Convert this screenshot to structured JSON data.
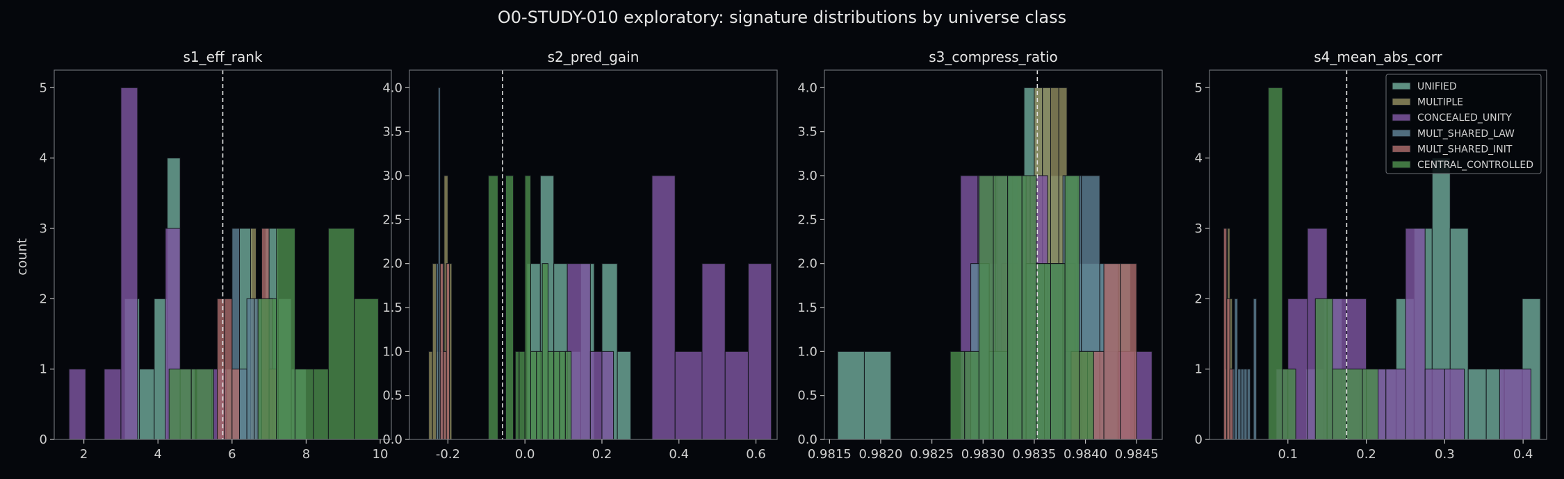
{
  "suptitle": "O0-STUDY-010 exploratory: signature distributions by universe class",
  "ylabel": "count",
  "legend": [
    "UNIFIED",
    "MULTIPLE",
    "CONCEALED_UNITY",
    "MULT_SHARED_LAW",
    "MULT_SHARED_INIT",
    "CENTRAL_CONTROLLED"
  ],
  "colors": {
    "UNIFIED": "#6fa898",
    "MULTIPLE": "#8f8a5e",
    "CONCEALED_UNITY": "#7e56a0",
    "MULT_SHARED_LAW": "#5e7f93",
    "MULT_SHARED_INIT": "#a86a6a",
    "CENTRAL_CONTROLLED": "#4c8a4c"
  },
  "chart_data": [
    {
      "type": "bar",
      "title": "s1_eff_rank",
      "xlim": [
        1.2,
        10.3
      ],
      "ylim": [
        0,
        5.25
      ],
      "xticks": [
        2,
        4,
        6,
        8,
        10
      ],
      "yticks": [
        0,
        1,
        2,
        3,
        4,
        5
      ],
      "mean_line": 5.75,
      "series": [
        {
          "name": "UNIFIED",
          "bars": [
            [
              3.1,
              3.5,
              2
            ],
            [
              3.5,
              3.9,
              1
            ],
            [
              3.9,
              4.25,
              2
            ],
            [
              4.25,
              4.6,
              4
            ],
            [
              4.6,
              5.0,
              1
            ],
            [
              5.8,
              6.2,
              1
            ],
            [
              6.2,
              6.55,
              3
            ],
            [
              6.55,
              6.9,
              2
            ],
            [
              6.9,
              7.25,
              3
            ],
            [
              7.25,
              7.6,
              2
            ],
            [
              7.6,
              8.0,
              1
            ]
          ]
        },
        {
          "name": "MULTIPLE",
          "bars": [
            [
              6.5,
              6.65,
              3
            ],
            [
              6.65,
              6.8,
              2
            ],
            [
              6.8,
              6.95,
              1
            ],
            [
              6.95,
              7.1,
              2
            ]
          ]
        },
        {
          "name": "CONCEALED_UNITY",
          "bars": [
            [
              1.6,
              2.05,
              1
            ],
            [
              2.55,
              3.0,
              1
            ],
            [
              3.0,
              3.45,
              5
            ],
            [
              4.2,
              4.6,
              3
            ],
            [
              4.6,
              5.0,
              1
            ],
            [
              5.05,
              5.45,
              1
            ],
            [
              5.45,
              5.85,
              1
            ],
            [
              6.7,
              7.1,
              2
            ]
          ]
        },
        {
          "name": "MULT_SHARED_LAW",
          "bars": [
            [
              6.0,
              6.2,
              3
            ],
            [
              6.2,
              6.4,
              1
            ],
            [
              6.4,
              6.6,
              2
            ],
            [
              6.6,
              6.8,
              2
            ]
          ]
        },
        {
          "name": "MULT_SHARED_INIT",
          "bars": [
            [
              5.6,
              5.8,
              2
            ],
            [
              5.8,
              6.0,
              2
            ],
            [
              6.0,
              6.2,
              1
            ],
            [
              6.8,
              7.0,
              3
            ],
            [
              7.0,
              7.2,
              1
            ]
          ]
        },
        {
          "name": "CENTRAL_CONTROLLED",
          "bars": [
            [
              4.3,
              4.9,
              1
            ],
            [
              4.9,
              5.5,
              1
            ],
            [
              6.7,
              7.2,
              2
            ],
            [
              7.2,
              7.7,
              3
            ],
            [
              7.7,
              8.2,
              1
            ],
            [
              8.2,
              8.6,
              1
            ],
            [
              8.6,
              9.3,
              3
            ],
            [
              9.3,
              9.95,
              2
            ]
          ]
        }
      ]
    },
    {
      "type": "bar",
      "title": "s2_pred_gain",
      "xlim": [
        -0.3,
        0.655
      ],
      "ylim": [
        0,
        4.2
      ],
      "xticks": [
        -0.2,
        0.0,
        0.2,
        0.4,
        0.6
      ],
      "yticks": [
        0.0,
        0.5,
        1.0,
        1.5,
        2.0,
        2.5,
        3.0,
        3.5,
        4.0
      ],
      "mean_line": -0.058,
      "series": [
        {
          "name": "UNIFIED",
          "bars": [
            [
              0.005,
              0.04,
              2
            ],
            [
              0.04,
              0.075,
              3
            ],
            [
              0.075,
              0.11,
              2
            ],
            [
              0.11,
              0.145,
              1
            ],
            [
              0.145,
              0.18,
              2
            ],
            [
              0.2,
              0.24,
              2
            ],
            [
              0.24,
              0.275,
              1
            ]
          ]
        },
        {
          "name": "MULTIPLE",
          "bars": [
            [
              -0.25,
              -0.24,
              1
            ],
            [
              -0.24,
              -0.23,
              2
            ],
            [
              -0.23,
              -0.22,
              1
            ],
            [
              -0.22,
              -0.21,
              2
            ],
            [
              -0.21,
              -0.2,
              3
            ],
            [
              -0.2,
              -0.19,
              2
            ]
          ]
        },
        {
          "name": "CONCEALED_UNITY",
          "bars": [
            [
              0.11,
              0.17,
              2
            ],
            [
              0.17,
              0.2,
              1
            ],
            [
              0.2,
              0.23,
              1
            ],
            [
              0.33,
              0.39,
              3
            ],
            [
              0.39,
              0.46,
              1
            ],
            [
              0.46,
              0.52,
              2
            ],
            [
              0.52,
              0.58,
              1
            ],
            [
              0.58,
              0.64,
              2
            ]
          ]
        },
        {
          "name": "MULT_SHARED_LAW",
          "bars": [
            [
              -0.23,
              -0.225,
              2
            ],
            [
              -0.225,
              -0.22,
              4
            ],
            [
              -0.22,
              -0.215,
              1
            ],
            [
              -0.215,
              -0.21,
              2
            ]
          ]
        },
        {
          "name": "MULT_SHARED_INIT",
          "bars": [
            [
              -0.22,
              -0.212,
              2
            ],
            [
              -0.212,
              -0.204,
              1
            ],
            [
              -0.204,
              -0.196,
              2
            ]
          ]
        },
        {
          "name": "CENTRAL_CONTROLLED",
          "bars": [
            [
              -0.095,
              -0.07,
              3
            ],
            [
              -0.05,
              -0.03,
              3
            ],
            [
              -0.025,
              -0.015,
              1
            ],
            [
              -0.015,
              0.0,
              1
            ],
            [
              0.0,
              0.015,
              3
            ],
            [
              0.015,
              0.03,
              1
            ],
            [
              0.03,
              0.045,
              1
            ],
            [
              0.045,
              0.06,
              2
            ],
            [
              0.06,
              0.075,
              1
            ],
            [
              0.075,
              0.09,
              1
            ],
            [
              0.09,
              0.105,
              1
            ],
            [
              0.105,
              0.12,
              1
            ]
          ]
        }
      ]
    },
    {
      "type": "bar",
      "title": "s3_compress_ratio",
      "xlim": [
        0.98145,
        0.98475
      ],
      "ylim": [
        0,
        4.2
      ],
      "xticks": [
        0.9815,
        0.982,
        0.9825,
        0.983,
        0.9835,
        0.984,
        0.9845
      ],
      "yticks": [
        0.0,
        0.5,
        1.0,
        1.5,
        2.0,
        2.5,
        3.0,
        3.5,
        4.0
      ],
      "mean_line": 0.98353,
      "series": [
        {
          "name": "UNIFIED",
          "bars": [
            [
              0.98158,
              0.98184,
              1
            ],
            [
              0.98184,
              0.9821,
              1
            ],
            [
              0.98288,
              0.98314,
              2
            ],
            [
              0.98314,
              0.9834,
              3
            ],
            [
              0.9834,
              0.98366,
              4
            ],
            [
              0.98366,
              0.98392,
              3
            ],
            [
              0.98392,
              0.98418,
              2
            ],
            [
              0.98418,
              0.98444,
              2
            ]
          ]
        },
        {
          "name": "MULTIPLE",
          "bars": [
            [
              0.98318,
              0.98326,
              2
            ],
            [
              0.98326,
              0.98334,
              2
            ],
            [
              0.98334,
              0.98342,
              3
            ],
            [
              0.98342,
              0.9835,
              3
            ],
            [
              0.9835,
              0.98358,
              4
            ],
            [
              0.98358,
              0.98366,
              4
            ],
            [
              0.98366,
              0.98374,
              4
            ],
            [
              0.98374,
              0.98382,
              4
            ],
            [
              0.98382,
              0.9839,
              2
            ]
          ]
        },
        {
          "name": "CONCEALED_UNITY",
          "bars": [
            [
              0.98278,
              0.98295,
              3
            ],
            [
              0.98295,
              0.98312,
              3
            ],
            [
              0.98312,
              0.98329,
              3
            ],
            [
              0.98329,
              0.98346,
              3
            ],
            [
              0.98346,
              0.98363,
              3
            ],
            [
              0.98363,
              0.9838,
              2
            ],
            [
              0.9838,
              0.98397,
              1
            ],
            [
              0.98397,
              0.98414,
              1
            ],
            [
              0.98414,
              0.98431,
              1
            ],
            [
              0.98431,
              0.98448,
              1
            ],
            [
              0.98448,
              0.98465,
              1
            ]
          ]
        },
        {
          "name": "MULT_SHARED_LAW",
          "bars": [
            [
              0.98288,
              0.98306,
              2
            ],
            [
              0.98306,
              0.98324,
              1
            ],
            [
              0.98324,
              0.98342,
              3
            ],
            [
              0.98342,
              0.9836,
              2
            ],
            [
              0.9836,
              0.98378,
              2
            ],
            [
              0.98378,
              0.98396,
              3
            ],
            [
              0.98396,
              0.98414,
              3
            ],
            [
              0.98414,
              0.98432,
              2
            ]
          ]
        },
        {
          "name": "MULT_SHARED_INIT",
          "bars": [
            [
              0.98386,
              0.98402,
              1
            ],
            [
              0.98402,
              0.98418,
              1
            ],
            [
              0.98418,
              0.98434,
              2
            ],
            [
              0.98434,
              0.9845,
              2
            ]
          ]
        },
        {
          "name": "CENTRAL_CONTROLLED",
          "bars": [
            [
              0.98268,
              0.98282,
              1
            ],
            [
              0.98282,
              0.98296,
              1
            ],
            [
              0.98296,
              0.9831,
              3
            ],
            [
              0.9831,
              0.98324,
              3
            ],
            [
              0.98324,
              0.98338,
              3
            ],
            [
              0.98338,
              0.98352,
              3
            ],
            [
              0.98352,
              0.98366,
              2
            ],
            [
              0.98366,
              0.9838,
              2
            ],
            [
              0.9838,
              0.98394,
              3
            ],
            [
              0.98394,
              0.98408,
              1
            ]
          ]
        }
      ]
    },
    {
      "type": "bar",
      "title": "s4_mean_abs_corr",
      "xlim": [
        0.0,
        0.43
      ],
      "ylim": [
        0,
        5.25
      ],
      "xticks": [
        0.1,
        0.2,
        0.3,
        0.4
      ],
      "yticks": [
        0,
        1,
        2,
        3,
        4,
        5
      ],
      "mean_line": 0.175,
      "series": [
        {
          "name": "UNIFIED",
          "bars": [
            [
              0.123,
              0.146,
              1
            ],
            [
              0.146,
              0.169,
              2
            ],
            [
              0.169,
              0.192,
              1
            ],
            [
              0.192,
              0.215,
              1
            ],
            [
              0.215,
              0.238,
              1
            ],
            [
              0.238,
              0.261,
              2
            ],
            [
              0.261,
              0.284,
              3
            ],
            [
              0.284,
              0.307,
              4
            ],
            [
              0.307,
              0.33,
              3
            ],
            [
              0.33,
              0.353,
              1
            ],
            [
              0.353,
              0.376,
              1
            ],
            [
              0.376,
              0.399,
              1
            ],
            [
              0.399,
              0.422,
              2
            ]
          ]
        },
        {
          "name": "MULTIPLE",
          "bars": [
            [
              0.02,
              0.023,
              1
            ],
            [
              0.023,
              0.026,
              3
            ],
            [
              0.026,
              0.029,
              2
            ]
          ]
        },
        {
          "name": "CONCEALED_UNITY",
          "bars": [
            [
              0.085,
              0.1,
              1
            ],
            [
              0.1,
              0.125,
              2
            ],
            [
              0.125,
              0.15,
              3
            ],
            [
              0.15,
              0.175,
              2
            ],
            [
              0.175,
              0.2,
              2
            ],
            [
              0.2,
              0.225,
              1
            ],
            [
              0.225,
              0.25,
              1
            ],
            [
              0.25,
              0.275,
              3
            ],
            [
              0.275,
              0.3,
              1
            ],
            [
              0.3,
              0.325,
              1
            ],
            [
              0.37,
              0.41,
              1
            ]
          ]
        },
        {
          "name": "MULT_SHARED_LAW",
          "bars": [
            [
              0.028,
              0.032,
              1
            ],
            [
              0.032,
              0.036,
              2
            ],
            [
              0.036,
              0.04,
              1
            ],
            [
              0.04,
              0.044,
              1
            ],
            [
              0.044,
              0.048,
              1
            ],
            [
              0.048,
              0.052,
              1
            ],
            [
              0.056,
              0.06,
              2
            ]
          ]
        },
        {
          "name": "MULT_SHARED_INIT",
          "bars": [
            [
              0.018,
              0.022,
              3
            ],
            [
              0.022,
              0.026,
              2
            ],
            [
              0.026,
              0.03,
              1
            ]
          ]
        },
        {
          "name": "CENTRAL_CONTROLLED",
          "bars": [
            [
              0.075,
              0.093,
              5
            ],
            [
              0.093,
              0.11,
              1
            ],
            [
              0.135,
              0.157,
              2
            ],
            [
              0.157,
              0.175,
              1
            ],
            [
              0.175,
              0.195,
              1
            ],
            [
              0.195,
              0.215,
              1
            ]
          ]
        }
      ]
    }
  ]
}
